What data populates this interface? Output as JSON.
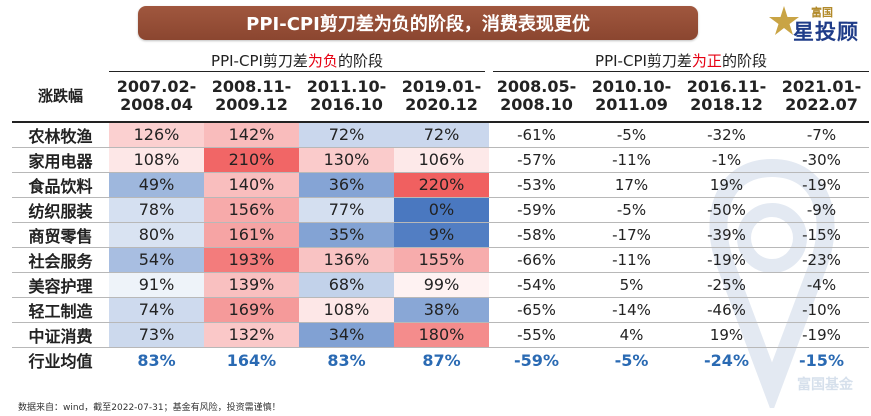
{
  "title": "PPI-CPI剪刀差为负的阶段，消费表现更优",
  "logo": {
    "small": "富国",
    "big": "星投顾"
  },
  "watermark": "富国基金",
  "footnote": "数据来自：wind，截至2022-07-31；基金有风险，投资需谨慎！",
  "colors": {
    "banner": "#8b4630",
    "high_red": "#f06060",
    "low_blue": "#4a78c0",
    "avg_text": "#2a6ab3",
    "highlight": "#e60012"
  },
  "chart_data": {
    "type": "heatmap",
    "row_header": "涨跌幅",
    "group_headers": [
      {
        "prefix": "PPI-CPI剪刀差",
        "highlight": "为负",
        "suffix": "的阶段",
        "span": 4
      },
      {
        "prefix": "PPI-CPI剪刀差",
        "highlight": "为正",
        "suffix": "的阶段",
        "span": 4
      }
    ],
    "periods": [
      {
        "start": "2007.02-",
        "end": "2008.04"
      },
      {
        "start": "2008.11-",
        "end": "2009.12"
      },
      {
        "start": "2011.10-",
        "end": "2016.10"
      },
      {
        "start": "2019.01-",
        "end": "2020.12"
      },
      {
        "start": "2008.05-",
        "end": "2008.10"
      },
      {
        "start": "2010.10-",
        "end": "2011.09"
      },
      {
        "start": "2016.11-",
        "end": "2018.12"
      },
      {
        "start": "2021.01-",
        "end": "2022.07"
      }
    ],
    "rows": [
      {
        "name": "农林牧渔",
        "values": [
          126,
          142,
          72,
          72,
          -61,
          -5,
          -32,
          -7
        ]
      },
      {
        "name": "家用电器",
        "values": [
          108,
          210,
          130,
          106,
          -57,
          -11,
          -1,
          -30
        ]
      },
      {
        "name": "食品饮料",
        "values": [
          49,
          140,
          36,
          220,
          -53,
          17,
          19,
          -19
        ]
      },
      {
        "name": "纺织服装",
        "values": [
          78,
          156,
          77,
          0,
          -59,
          -5,
          -50,
          -9
        ]
      },
      {
        "name": "商贸零售",
        "values": [
          80,
          161,
          35,
          9,
          -58,
          -17,
          -39,
          -15
        ]
      },
      {
        "name": "社会服务",
        "values": [
          54,
          193,
          136,
          155,
          -66,
          -11,
          -19,
          -23
        ]
      },
      {
        "name": "美容护理",
        "values": [
          91,
          139,
          68,
          99,
          -54,
          5,
          -25,
          -4
        ]
      },
      {
        "name": "轻工制造",
        "values": [
          74,
          169,
          108,
          38,
          -65,
          -14,
          -46,
          -10
        ]
      },
      {
        "name": "中证消费",
        "values": [
          73,
          132,
          34,
          180,
          -55,
          4,
          19,
          -19
        ]
      }
    ],
    "average": {
      "name": "行业均值",
      "values": [
        83,
        164,
        83,
        87,
        -59,
        -5,
        -24,
        -15
      ]
    },
    "unit": "%",
    "colored_columns": 4
  }
}
